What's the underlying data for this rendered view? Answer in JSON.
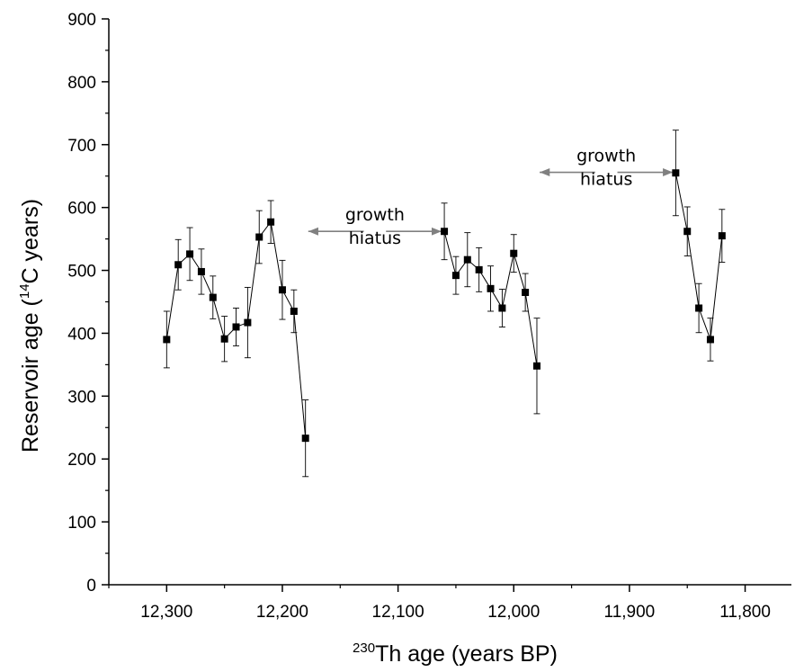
{
  "chart_data": {
    "type": "scatter",
    "xlabel_sup": "230",
    "xlabel": "Th age (years BP)",
    "ylabel_prefix": "Reservoir age (",
    "ylabel_sup": "14",
    "ylabel_suffix": "C years)",
    "xlim": [
      12350,
      11760
    ],
    "ylim": [
      0,
      900
    ],
    "x_reversed": true,
    "xticks": [
      12300,
      12200,
      12100,
      12000,
      11900,
      11800
    ],
    "xtick_labels": [
      "12,300",
      "12,200",
      "12,100",
      "12,000",
      "11,900",
      "11,800"
    ],
    "yticks": [
      0,
      100,
      200,
      300,
      400,
      500,
      600,
      700,
      800,
      900
    ],
    "ytick_labels": [
      "0",
      "100",
      "200",
      "300",
      "400",
      "500",
      "600",
      "700",
      "800",
      "900"
    ],
    "series": [
      {
        "segment": 1,
        "points": [
          {
            "x": 12300,
            "y": 390,
            "err": 45
          },
          {
            "x": 12290,
            "y": 509,
            "err": 40
          },
          {
            "x": 12280,
            "y": 526,
            "err": 42
          },
          {
            "x": 12270,
            "y": 498,
            "err": 36
          },
          {
            "x": 12260,
            "y": 457,
            "err": 34
          },
          {
            "x": 12250,
            "y": 391,
            "err": 36
          },
          {
            "x": 12240,
            "y": 410,
            "err": 30
          },
          {
            "x": 12230,
            "y": 417,
            "err": 56
          },
          {
            "x": 12220,
            "y": 553,
            "err": 42
          },
          {
            "x": 12210,
            "y": 577,
            "err": 34
          },
          {
            "x": 12200,
            "y": 469,
            "err": 47
          },
          {
            "x": 12190,
            "y": 435,
            "err": 34
          },
          {
            "x": 12180,
            "y": 233,
            "err": 61
          }
        ]
      },
      {
        "segment": 2,
        "points": [
          {
            "x": 12060,
            "y": 562,
            "err": 45
          },
          {
            "x": 12050,
            "y": 492,
            "err": 30
          },
          {
            "x": 12040,
            "y": 517,
            "err": 43
          },
          {
            "x": 12030,
            "y": 501,
            "err": 35
          },
          {
            "x": 12020,
            "y": 471,
            "err": 36
          },
          {
            "x": 12010,
            "y": 440,
            "err": 30
          },
          {
            "x": 12000,
            "y": 527,
            "err": 30
          },
          {
            "x": 11990,
            "y": 465,
            "err": 30
          },
          {
            "x": 11980,
            "y": 348,
            "err": 76
          }
        ]
      },
      {
        "segment": 3,
        "points": [
          {
            "x": 11860,
            "y": 655,
            "err": 68
          },
          {
            "x": 11850,
            "y": 562,
            "err": 39
          },
          {
            "x": 11840,
            "y": 440,
            "err": 39
          },
          {
            "x": 11830,
            "y": 390,
            "err": 34
          },
          {
            "x": 11820,
            "y": 555,
            "err": 42
          }
        ]
      }
    ],
    "annotations": [
      {
        "line1": "growth",
        "line2": "hiatus",
        "arrow_left_x": 12180,
        "arrow_right_x": 12060,
        "y": 562
      },
      {
        "line1": "growth",
        "line2": "hiatus",
        "arrow_left_x": 11980,
        "arrow_right_x": 11860,
        "y": 656
      }
    ],
    "colors": {
      "marker": "#000000",
      "line": "#000000",
      "arrow": "#808080"
    }
  }
}
